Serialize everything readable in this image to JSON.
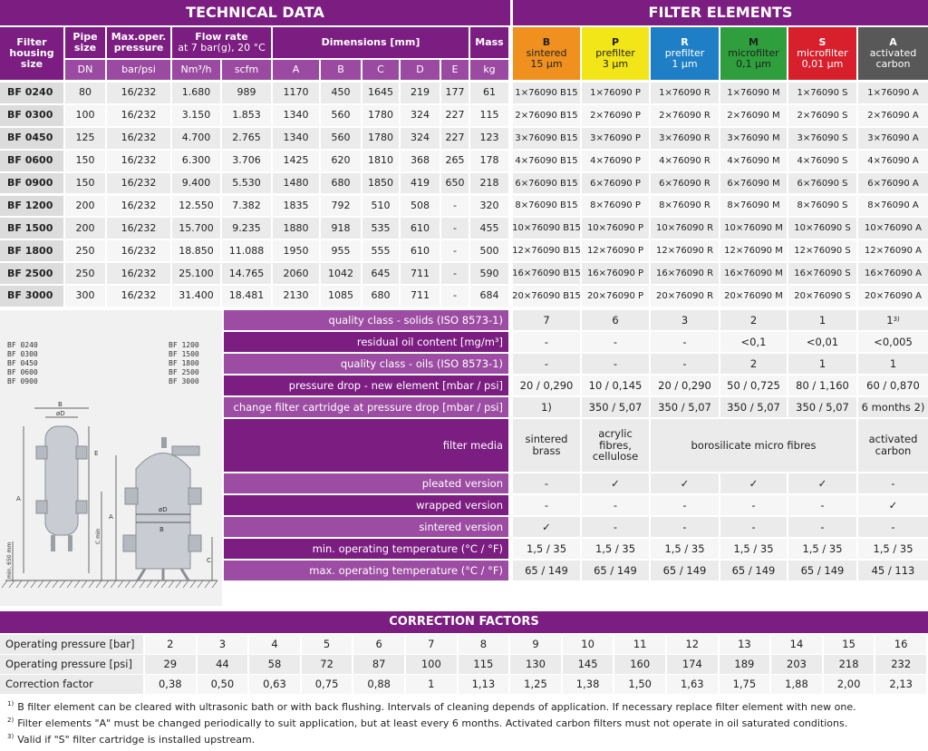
{
  "tech_title": "TECHNICAL DATA",
  "filter_title": "FILTER ELEMENTS",
  "headers": {
    "housing": "Filter housing size",
    "pipe": "Pipe size",
    "pressure": "Max.oper. pressure",
    "flow": "Flow rate",
    "flow_sub": "at 7 bar(g), 20 °C",
    "dims": "Dimensions [mm]",
    "mass": "Mass",
    "units": [
      "DN",
      "bar/psi",
      "Nm³/h",
      "scfm",
      "A",
      "B",
      "C",
      "D",
      "E",
      "kg"
    ]
  },
  "elements": [
    {
      "code": "B",
      "line1": "sintered",
      "line2": "15 µm",
      "color": "#f0901e",
      "text": "#222"
    },
    {
      "code": "P",
      "line1": "prefilter",
      "line2": "3 µm",
      "color": "#f2e619",
      "text": "#222"
    },
    {
      "code": "R",
      "line1": "prefilter",
      "line2": "1 µm",
      "color": "#1e7fc6",
      "text": "#fff"
    },
    {
      "code": "M",
      "line1": "microfilter",
      "line2": "0,1 µm",
      "color": "#2f9e3c",
      "text": "#222"
    },
    {
      "code": "S",
      "line1": "microfilter",
      "line2": "0,01 µm",
      "color": "#d8202d",
      "text": "#fff"
    },
    {
      "code": "A",
      "line1": "activated",
      "line2": "carbon",
      "color": "#585858",
      "text": "#fff"
    }
  ],
  "rows": [
    {
      "m": "BF 0240",
      "dn": "80",
      "p": "16/232",
      "nm": "1.680",
      "scfm": "989",
      "A": "1170",
      "B": "450",
      "C": "1645",
      "D": "219",
      "E": "177",
      "kg": "61",
      "el": [
        "1×76090 B15",
        "1×76090 P",
        "1×76090 R",
        "1×76090 M",
        "1×76090 S",
        "1×76090 A"
      ]
    },
    {
      "m": "BF 0300",
      "dn": "100",
      "p": "16/232",
      "nm": "3.150",
      "scfm": "1.853",
      "A": "1340",
      "B": "560",
      "C": "1780",
      "D": "324",
      "E": "227",
      "kg": "115",
      "el": [
        "2×76090 B15",
        "2×76090 P",
        "2×76090 R",
        "2×76090 M",
        "2×76090 S",
        "2×76090 A"
      ]
    },
    {
      "m": "BF 0450",
      "dn": "125",
      "p": "16/232",
      "nm": "4.700",
      "scfm": "2.765",
      "A": "1340",
      "B": "560",
      "C": "1780",
      "D": "324",
      "E": "227",
      "kg": "123",
      "el": [
        "3×76090 B15",
        "3×76090 P",
        "3×76090 R",
        "3×76090 M",
        "3×76090 S",
        "3×76090 A"
      ]
    },
    {
      "m": "BF 0600",
      "dn": "150",
      "p": "16/232",
      "nm": "6.300",
      "scfm": "3.706",
      "A": "1425",
      "B": "620",
      "C": "1810",
      "D": "368",
      "E": "265",
      "kg": "178",
      "el": [
        "4×76090 B15",
        "4×76090 P",
        "4×76090 R",
        "4×76090 M",
        "4×76090 S",
        "4×76090 A"
      ]
    },
    {
      "m": "BF 0900",
      "dn": "150",
      "p": "16/232",
      "nm": "9.400",
      "scfm": "5.530",
      "A": "1480",
      "B": "680",
      "C": "1850",
      "D": "419",
      "E": "650",
      "kg": "218",
      "el": [
        "6×76090 B15",
        "6×76090 P",
        "6×76090 R",
        "6×76090 M",
        "6×76090 S",
        "6×76090 A"
      ]
    },
    {
      "m": "BF 1200",
      "dn": "200",
      "p": "16/232",
      "nm": "12.550",
      "scfm": "7.382",
      "A": "1835",
      "B": "792",
      "C": "510",
      "D": "508",
      "E": "-",
      "kg": "320",
      "el": [
        "8×76090 B15",
        "8×76090 P",
        "8×76090 R",
        "8×76090 M",
        "8×76090 S",
        "8×76090 A"
      ]
    },
    {
      "m": "BF 1500",
      "dn": "200",
      "p": "16/232",
      "nm": "15.700",
      "scfm": "9.235",
      "A": "1880",
      "B": "918",
      "C": "535",
      "D": "610",
      "E": "-",
      "kg": "455",
      "el": [
        "10×76090 B15",
        "10×76090 P",
        "10×76090 R",
        "10×76090 M",
        "10×76090 S",
        "10×76090 A"
      ]
    },
    {
      "m": "BF 1800",
      "dn": "250",
      "p": "16/232",
      "nm": "18.850",
      "scfm": "11.088",
      "A": "1950",
      "B": "955",
      "C": "555",
      "D": "610",
      "E": "-",
      "kg": "500",
      "el": [
        "12×76090 B15",
        "12×76090 P",
        "12×76090 R",
        "12×76090 M",
        "12×76090 S",
        "12×76090 A"
      ]
    },
    {
      "m": "BF 2500",
      "dn": "250",
      "p": "16/232",
      "nm": "25.100",
      "scfm": "14.765",
      "A": "2060",
      "B": "1042",
      "C": "645",
      "D": "711",
      "E": "-",
      "kg": "590",
      "el": [
        "16×76090 B15",
        "16×76090 P",
        "16×76090 R",
        "16×76090 M",
        "16×76090 S",
        "16×76090 A"
      ]
    },
    {
      "m": "BF 3000",
      "dn": "300",
      "p": "16/232",
      "nm": "31.400",
      "scfm": "18.481",
      "A": "2130",
      "B": "1085",
      "C": "680",
      "D": "711",
      "E": "-",
      "kg": "684",
      "el": [
        "20×76090 B15",
        "20×76090 P",
        "20×76090 R",
        "20×76090 M",
        "20×76090 S",
        "20×76090 A"
      ]
    }
  ],
  "drawing": {
    "left_models": [
      "BF 0240",
      "BF 0300",
      "BF 0450",
      "BF 0600",
      "BF 0900"
    ],
    "right_models": [
      "BF 1200",
      "BF 1500",
      "BF 1800",
      "BF 2500",
      "BF 3000"
    ],
    "floor_label": "min. 650 mm",
    "dim_labels": {
      "A": "A",
      "B": "B",
      "C": "C",
      "Cmin": "C min",
      "D": "øD",
      "E": "E"
    }
  },
  "props": [
    {
      "label": "quality class - solids (ISO 8573-1)",
      "v": [
        "7",
        "6",
        "3",
        "2",
        "1",
        "1"
      ],
      "sup": "3)"
    },
    {
      "label": "residual oil content [mg/m³]",
      "v": [
        "-",
        "-",
        "-",
        "<0,1",
        "<0,01",
        "<0,005"
      ]
    },
    {
      "label": "quality class - oils (ISO 8573-1)",
      "v": [
        "-",
        "-",
        "-",
        "2",
        "1",
        "1"
      ]
    },
    {
      "label": "pressure drop - new element [mbar / psi]",
      "v": [
        "20 / 0,290",
        "10 / 0,145",
        "20 / 0,290",
        "50 / 0,725",
        "80 / 1,160",
        "60 / 0,870"
      ]
    },
    {
      "label": "change filter cartridge at pressure drop [mbar / psi]",
      "v": [
        "1)",
        "350 / 5,07",
        "350 / 5,07",
        "350 / 5,07",
        "350 / 5,07",
        "6 months 2)"
      ]
    },
    {
      "label": "filter media",
      "media": [
        {
          "text": "sintered brass"
        },
        {
          "text": "acrylic fibres, cellulose"
        },
        {
          "text": "borosilicate micro fibres"
        },
        {
          "text": "activated carbon"
        }
      ]
    },
    {
      "label": "pleated version",
      "v": [
        "-",
        "✓",
        "✓",
        "✓",
        "✓",
        "-"
      ]
    },
    {
      "label": "wrapped version",
      "v": [
        "-",
        "-",
        "-",
        "-",
        "-",
        "✓"
      ]
    },
    {
      "label": "sintered version",
      "v": [
        "✓",
        "-",
        "-",
        "-",
        "-",
        "-"
      ]
    },
    {
      "label": "min. operating temperature  (°C / °F)",
      "v": [
        "1,5 / 35",
        "1,5 / 35",
        "1,5 / 35",
        "1,5 / 35",
        "1,5 / 35",
        "1,5 / 35"
      ]
    },
    {
      "label": "max. operating temperature  (°C / °F)",
      "v": [
        "65 / 149",
        "65 / 149",
        "65 / 149",
        "65 / 149",
        "65 / 149",
        "45 / 113"
      ]
    }
  ],
  "correction": {
    "title": "CORRECTION FACTORS",
    "rows": [
      {
        "label": "Operating pressure [bar]",
        "v": [
          "2",
          "3",
          "4",
          "5",
          "6",
          "7",
          "8",
          "9",
          "10",
          "11",
          "12",
          "13",
          "14",
          "15",
          "16"
        ]
      },
      {
        "label": "Operating pressure [psi]",
        "v": [
          "29",
          "44",
          "58",
          "72",
          "87",
          "100",
          "115",
          "130",
          "145",
          "160",
          "174",
          "189",
          "203",
          "218",
          "232"
        ]
      },
      {
        "label": "Correction factor",
        "v": [
          "0,38",
          "0,50",
          "0,63",
          "0,75",
          "0,88",
          "1",
          "1,13",
          "1,25",
          "1,38",
          "1,50",
          "1,63",
          "1,75",
          "1,88",
          "2,00",
          "2,13"
        ]
      }
    ]
  },
  "notes": [
    {
      "mark": "1)",
      "text": "B filter element can be cleared with ultrasonic bath or with back flushing. Intervals of cleaning depends of application. If necessary replace filter element with new one."
    },
    {
      "mark": "2)",
      "text": "Filter elements \"A\" must be changed periodically to suit application, but at least every 6 months. Activated carbon filters must not operate in oil saturated conditions."
    },
    {
      "mark": "3)",
      "text": "Valid if \"S\" filter cartridge is installed upstream."
    }
  ]
}
